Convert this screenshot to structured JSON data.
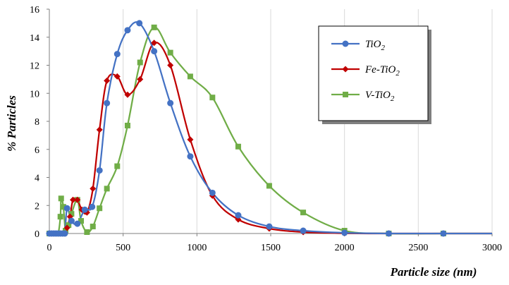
{
  "chart_data": {
    "type": "line",
    "title": "",
    "xlabel": "Particle size (nm)",
    "ylabel": "% Particles",
    "xlim": [
      0,
      3000
    ],
    "ylim": [
      0,
      16
    ],
    "x_ticks": [
      0,
      500,
      1000,
      1500,
      2000,
      2500,
      3000
    ],
    "y_ticks": [
      0,
      2,
      4,
      6,
      8,
      10,
      12,
      14,
      16
    ],
    "grid": "vertical",
    "legend_position": "top-right",
    "series": [
      {
        "name": "TiO",
        "name_subscript": "2",
        "color": "#4472C4",
        "marker": "circle",
        "points": [
          [
            0,
            0
          ],
          [
            15,
            0
          ],
          [
            30,
            0
          ],
          [
            45,
            0
          ],
          [
            60,
            0
          ],
          [
            75,
            0
          ],
          [
            90,
            0
          ],
          [
            105,
            0
          ],
          [
            120,
            1.8
          ],
          [
            150,
            0.9
          ],
          [
            190,
            0.7
          ],
          [
            240,
            1.7
          ],
          [
            290,
            1.9
          ],
          [
            340,
            4.5
          ],
          [
            390,
            9.3
          ],
          [
            460,
            12.8
          ],
          [
            530,
            14.5
          ],
          [
            610,
            15.0
          ],
          [
            710,
            13.0
          ],
          [
            820,
            9.3
          ],
          [
            955,
            5.5
          ],
          [
            1105,
            2.9
          ],
          [
            1280,
            1.3
          ],
          [
            1490,
            0.5
          ],
          [
            1720,
            0.2
          ],
          [
            2000,
            0.05
          ],
          [
            2300,
            0
          ],
          [
            2670,
            0
          ],
          [
            3000,
            0
          ]
        ]
      },
      {
        "name": "Fe-TiO",
        "name_subscript": "2",
        "color": "#C00000",
        "marker": "diamond",
        "points": [
          [
            0,
            0
          ],
          [
            15,
            0
          ],
          [
            30,
            0
          ],
          [
            45,
            0
          ],
          [
            60,
            0
          ],
          [
            75,
            0
          ],
          [
            90,
            0
          ],
          [
            105,
            0
          ],
          [
            120,
            0.4
          ],
          [
            140,
            1.2
          ],
          [
            160,
            2.4
          ],
          [
            190,
            2.4
          ],
          [
            220,
            1.7
          ],
          [
            255,
            1.5
          ],
          [
            295,
            3.2
          ],
          [
            340,
            7.4
          ],
          [
            390,
            10.9
          ],
          [
            460,
            11.2
          ],
          [
            530,
            9.9
          ],
          [
            615,
            11.0
          ],
          [
            710,
            13.6
          ],
          [
            820,
            12.0
          ],
          [
            955,
            6.7
          ],
          [
            1105,
            2.7
          ],
          [
            1280,
            1.0
          ],
          [
            1490,
            0.35
          ],
          [
            1720,
            0.1
          ],
          [
            2000,
            0.02
          ],
          [
            2300,
            0
          ],
          [
            2670,
            0
          ],
          [
            3000,
            0
          ]
        ]
      },
      {
        "name": "V-TiO",
        "name_subscript": "2",
        "color": "#70AD47",
        "marker": "square",
        "points": [
          [
            0,
            0
          ],
          [
            15,
            0
          ],
          [
            30,
            0
          ],
          [
            45,
            0
          ],
          [
            60,
            0
          ],
          [
            75,
            1.2
          ],
          [
            80,
            2.5
          ],
          [
            95,
            1.9
          ],
          [
            110,
            0.2
          ],
          [
            130,
            0.6
          ],
          [
            150,
            1.4
          ],
          [
            190,
            2.4
          ],
          [
            215,
            0.9
          ],
          [
            255,
            0.1
          ],
          [
            295,
            0.5
          ],
          [
            340,
            1.8
          ],
          [
            390,
            3.2
          ],
          [
            460,
            4.8
          ],
          [
            530,
            7.7
          ],
          [
            615,
            12.2
          ],
          [
            710,
            14.7
          ],
          [
            820,
            12.9
          ],
          [
            955,
            11.2
          ],
          [
            1105,
            9.7
          ],
          [
            1280,
            6.2
          ],
          [
            1490,
            3.4
          ],
          [
            1720,
            1.5
          ],
          [
            2000,
            0.2
          ],
          [
            2300,
            0
          ],
          [
            2670,
            0
          ],
          [
            3000,
            0
          ]
        ]
      }
    ]
  }
}
